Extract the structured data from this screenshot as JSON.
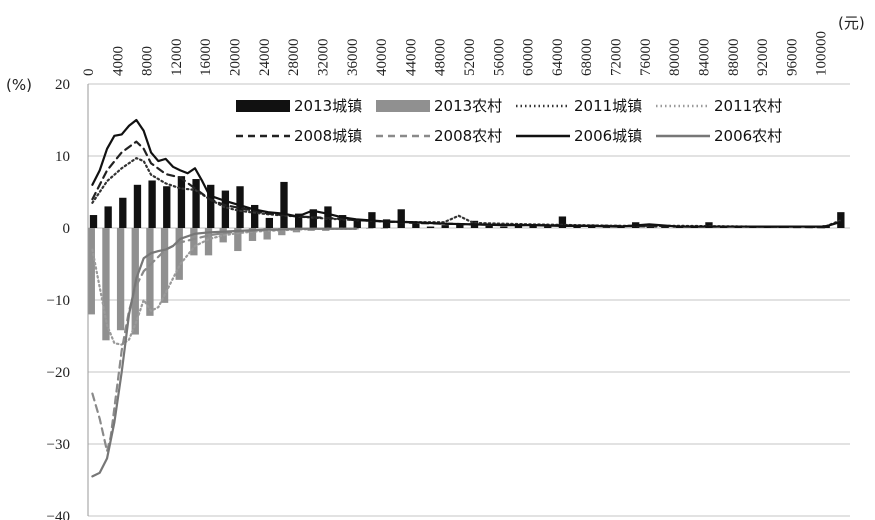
{
  "chart_data": {
    "type": "bar",
    "y_unit_label": "(%)",
    "x_unit_label": "(元)",
    "x_ticks": [
      "0",
      "4000",
      "8000",
      "12000",
      "16000",
      "20000",
      "24000",
      "28000",
      "32000",
      "36000",
      "40000",
      "44000",
      "48000",
      "52000",
      "56000",
      "60000",
      "64000",
      "68000",
      "72000",
      "76000",
      "80000",
      "84000",
      "88000",
      "92000",
      "96000",
      "100000"
    ],
    "y_ticks": [
      "20",
      "10",
      "0",
      "−10",
      "−20",
      "−30",
      "−40"
    ],
    "xlim": [
      0,
      104000
    ],
    "ylim": [
      -40,
      20
    ],
    "grid": "horizontal",
    "legend_position": "top",
    "bar_series": [
      {
        "name": "2013城镇",
        "color": "#111111",
        "x": [
          0,
          2000,
          4000,
          6000,
          8000,
          10000,
          12000,
          14000,
          16000,
          18000,
          20000,
          22000,
          24000,
          26000,
          28000,
          30000,
          32000,
          34000,
          36000,
          38000,
          40000,
          42000,
          44000,
          46000,
          48000,
          50000,
          52000,
          54000,
          56000,
          58000,
          60000,
          62000,
          64000,
          66000,
          68000,
          70000,
          72000,
          74000,
          76000,
          78000,
          80000,
          82000,
          84000,
          86000,
          88000,
          90000,
          92000,
          94000,
          96000,
          98000,
          100000,
          102000
        ],
        "values": [
          1.8,
          3.0,
          4.2,
          6.0,
          6.6,
          5.8,
          7.2,
          6.8,
          6.0,
          5.2,
          5.8,
          3.2,
          1.4,
          6.4,
          2.0,
          2.6,
          3.0,
          1.8,
          1.2,
          2.2,
          1.2,
          2.6,
          0.6,
          0.2,
          0.4,
          0.6,
          1.0,
          0.3,
          0.2,
          0.4,
          0.5,
          0.2,
          1.6,
          0.2,
          0.3,
          0.1,
          0.3,
          0.8,
          0.3,
          0.1,
          0.2,
          0.1,
          0.8,
          0.1,
          0.1,
          0.2,
          0.1,
          0.1,
          0.1,
          0.2,
          0.4,
          2.2
        ]
      },
      {
        "name": "2013农村",
        "color": "#909090",
        "x": [
          0,
          2000,
          4000,
          6000,
          8000,
          10000,
          12000,
          14000,
          16000,
          18000,
          20000,
          22000,
          24000,
          26000,
          28000,
          30000,
          32000,
          34000,
          36000,
          38000,
          40000
        ],
        "values": [
          -12.0,
          -15.6,
          -14.2,
          -14.8,
          -12.2,
          -10.4,
          -7.2,
          -3.8,
          -3.8,
          -2.0,
          -3.2,
          -1.8,
          -1.6,
          -1.0,
          -0.6,
          -0.4,
          -0.4,
          -0.2,
          -0.2,
          -0.1,
          -0.1
        ]
      }
    ],
    "line_series": [
      {
        "name": "2011城镇",
        "color": "#333333",
        "style": "dotted",
        "x": [
          0,
          2000,
          4000,
          6000,
          7000,
          8000,
          10000,
          12000,
          14000,
          16000,
          18000,
          20000,
          24000,
          28000,
          32000,
          36000,
          40000,
          44000,
          48000,
          50000,
          52000,
          56000,
          60000,
          66000,
          72000,
          80000,
          90000,
          100000,
          102000
        ],
        "values": [
          3.5,
          6.5,
          8.3,
          9.7,
          9.3,
          7.4,
          6.2,
          5.5,
          5.3,
          4.0,
          2.9,
          2.4,
          1.9,
          1.6,
          1.3,
          1.1,
          0.9,
          0.8,
          0.8,
          1.7,
          0.7,
          0.6,
          0.5,
          0.4,
          0.3,
          0.3,
          0.2,
          0.2,
          1.0
        ]
      },
      {
        "name": "2011农村",
        "color": "#9a9a9a",
        "style": "dotted",
        "x": [
          0,
          2000,
          3000,
          4000,
          5000,
          6000,
          7000,
          8000,
          9000,
          10000,
          12000,
          14000,
          16000,
          18000,
          20000,
          22000,
          24000,
          26000,
          28000,
          32000,
          36000
        ],
        "values": [
          -3.0,
          -13.5,
          -16.0,
          -16.2,
          -15.5,
          -13.0,
          -10.0,
          -11.5,
          -11.0,
          -9.0,
          -5.0,
          -2.5,
          -1.5,
          -1.0,
          -0.7,
          -0.5,
          -0.4,
          -0.3,
          -0.2,
          -0.1,
          -0.1
        ]
      },
      {
        "name": "2008城镇",
        "color": "#222222",
        "style": "dashed",
        "x": [
          0,
          2000,
          4000,
          6000,
          7000,
          8000,
          10000,
          12000,
          14000,
          16000,
          18000,
          20000,
          22000,
          24000,
          26000,
          28000,
          32000,
          36000,
          40000,
          44000,
          48000,
          52000,
          60000,
          70000,
          80000,
          90000,
          100000
        ],
        "values": [
          4.0,
          8.0,
          10.5,
          12.0,
          11.0,
          9.0,
          7.5,
          7.0,
          5.5,
          4.0,
          3.2,
          2.8,
          2.4,
          2.0,
          1.8,
          1.6,
          1.4,
          1.1,
          0.9,
          0.7,
          0.6,
          0.5,
          0.4,
          0.3,
          0.2,
          0.2,
          0.1
        ]
      },
      {
        "name": "2008农村",
        "color": "#8a8a8a",
        "style": "dashed",
        "x": [
          0,
          1000,
          2000,
          2500,
          3000,
          4000,
          5000,
          6000,
          7000,
          8000,
          10000,
          12000,
          14000,
          16000,
          18000,
          20000,
          22000,
          24000,
          26000,
          28000
        ],
        "values": [
          -23.0,
          -26.5,
          -31.0,
          -29.0,
          -25.0,
          -17.0,
          -11.5,
          -8.0,
          -6.0,
          -5.0,
          -3.0,
          -2.0,
          -1.5,
          -1.0,
          -0.7,
          -0.5,
          -0.4,
          -0.3,
          -0.2,
          -0.1
        ]
      },
      {
        "name": "2006城镇",
        "color": "#111111",
        "style": "solid",
        "x": [
          0,
          1000,
          2000,
          3000,
          4000,
          5000,
          6000,
          7000,
          8000,
          9000,
          10000,
          11000,
          12000,
          13000,
          14000,
          15000,
          16000,
          18000,
          20000,
          22000,
          24000,
          26000,
          28000,
          30000,
          32000,
          34000,
          36000,
          40000,
          44000,
          48000,
          52000,
          56000,
          60000,
          64000,
          68000,
          72000,
          76000,
          80000,
          90000,
          100000,
          102000
        ],
        "values": [
          6.0,
          8.0,
          11.0,
          12.8,
          13.0,
          14.2,
          15.0,
          13.5,
          10.5,
          9.3,
          9.6,
          8.5,
          8.0,
          7.6,
          8.3,
          6.5,
          4.5,
          3.8,
          3.2,
          2.6,
          2.2,
          2.0,
          1.6,
          2.4,
          2.0,
          1.5,
          1.2,
          0.9,
          0.8,
          0.6,
          0.5,
          0.4,
          0.4,
          0.3,
          0.3,
          0.2,
          0.5,
          0.2,
          0.2,
          0.2,
          0.8
        ]
      },
      {
        "name": "2006农村",
        "color": "#777777",
        "style": "solid",
        "x": [
          0,
          1000,
          2000,
          3000,
          4000,
          5000,
          6000,
          7000,
          8000,
          9000,
          10000,
          11000,
          12000,
          14000,
          16000,
          18000,
          20000,
          22000,
          24000,
          26000,
          28000,
          32000,
          36000
        ],
        "values": [
          -34.5,
          -34.0,
          -32.0,
          -27.0,
          -20.0,
          -12.0,
          -7.0,
          -4.2,
          -3.5,
          -3.2,
          -3.0,
          -2.5,
          -1.5,
          -0.8,
          -0.6,
          -0.5,
          -0.4,
          -0.3,
          -0.2,
          -0.2,
          -0.1,
          -0.1,
          -0.1
        ]
      }
    ]
  }
}
